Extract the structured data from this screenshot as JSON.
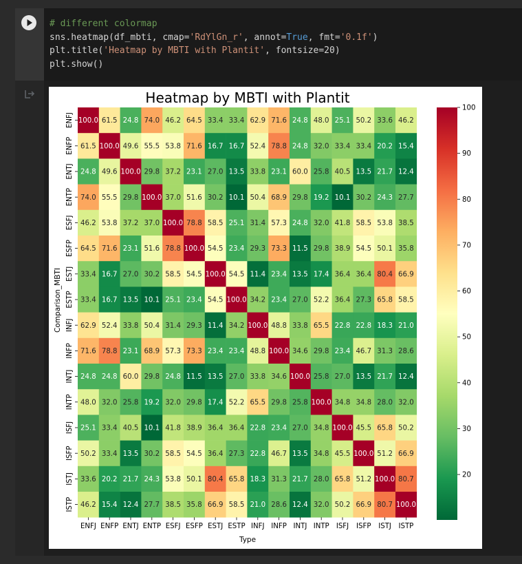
{
  "code_cell": {
    "lines": [
      "# different colormap",
      "sns.heatmap(df_mbti, cmap='RdYlGn_r', annot=True, fmt='0.1f')",
      "plt.title('Heatmap by MBTI with Plantit', fontsize=20)",
      "plt.show()"
    ],
    "run_icon": "play-icon"
  },
  "output": {
    "icon": "output-arrow-icon"
  },
  "colors": {
    "page_bg": "#2b2b2b",
    "code_bg": "#1a1a1a",
    "figure_bg": "#ffffff"
  },
  "chart_data": {
    "type": "heatmap",
    "title": "Heatmap by MBTI with Plantit",
    "xlabel": "Type",
    "ylabel": "Comparison_MBTI",
    "colormap": "RdYlGn_r",
    "value_range": [
      10.1,
      100.0
    ],
    "colorbar_ticks": [
      20,
      30,
      40,
      50,
      60,
      70,
      80,
      90,
      100
    ],
    "x_categories": [
      "ENFJ",
      "ENFP",
      "ENTJ",
      "ENTP",
      "ESFJ",
      "ESFP",
      "ESTJ",
      "ESTP",
      "INFJ",
      "INFP",
      "INTJ",
      "INTP",
      "ISFJ",
      "ISFP",
      "ISTJ",
      "ISTP"
    ],
    "y_categories": [
      "ENFJ",
      "ENFP",
      "ENTJ",
      "ENTP",
      "ESFJ",
      "ESFP",
      "ESTJ",
      "ESTP",
      "INFJ",
      "INFP",
      "INTJ",
      "INTP",
      "ISFJ",
      "ISFP",
      "ISTJ",
      "ISTP"
    ],
    "values": [
      [
        100.0,
        61.5,
        24.8,
        74.0,
        46.2,
        64.5,
        33.4,
        33.4,
        62.9,
        71.6,
        24.8,
        48.0,
        25.1,
        50.2,
        33.6,
        46.2
      ],
      [
        61.5,
        100.0,
        49.6,
        55.5,
        53.8,
        71.6,
        16.7,
        16.7,
        52.4,
        78.8,
        24.8,
        32.0,
        33.4,
        33.4,
        20.2,
        15.4
      ],
      [
        24.8,
        49.6,
        100.0,
        29.8,
        37.2,
        23.1,
        27.0,
        13.5,
        33.8,
        23.1,
        60.0,
        25.8,
        40.5,
        13.5,
        21.7,
        12.4
      ],
      [
        74.0,
        55.5,
        29.8,
        100.0,
        37.0,
        51.6,
        30.2,
        10.1,
        50.4,
        68.9,
        29.8,
        19.2,
        10.1,
        30.2,
        24.3,
        27.7
      ],
      [
        46.2,
        53.8,
        37.2,
        37.0,
        100.0,
        78.8,
        58.5,
        25.1,
        31.4,
        57.3,
        24.8,
        32.0,
        41.8,
        58.5,
        53.8,
        38.5
      ],
      [
        64.5,
        71.6,
        23.1,
        51.6,
        78.8,
        100.0,
        54.5,
        23.4,
        29.3,
        73.3,
        11.5,
        29.8,
        38.9,
        54.5,
        50.1,
        35.8
      ],
      [
        33.4,
        16.7,
        27.0,
        30.2,
        58.5,
        54.5,
        100.0,
        54.5,
        11.4,
        23.4,
        13.5,
        17.4,
        36.4,
        36.4,
        80.4,
        66.9
      ],
      [
        33.4,
        16.7,
        13.5,
        10.1,
        25.1,
        23.4,
        54.5,
        100.0,
        34.2,
        23.4,
        27.0,
        52.2,
        36.4,
        27.3,
        65.8,
        58.5
      ],
      [
        62.9,
        52.4,
        33.8,
        50.4,
        31.4,
        29.3,
        11.4,
        34.2,
        100.0,
        48.8,
        33.8,
        65.5,
        22.8,
        22.8,
        18.3,
        21.0
      ],
      [
        71.6,
        78.8,
        23.1,
        68.9,
        57.3,
        73.3,
        23.4,
        23.4,
        48.8,
        100.0,
        34.6,
        29.8,
        23.4,
        46.7,
        31.3,
        28.6
      ],
      [
        24.8,
        24.8,
        60.0,
        29.8,
        24.8,
        11.5,
        13.5,
        27.0,
        33.8,
        34.6,
        100.0,
        25.8,
        27.0,
        13.5,
        21.7,
        12.4
      ],
      [
        48.0,
        32.0,
        25.8,
        19.2,
        32.0,
        29.8,
        17.4,
        52.2,
        65.5,
        29.8,
        25.8,
        100.0,
        34.8,
        34.8,
        28.0,
        32.0
      ],
      [
        25.1,
        33.4,
        40.5,
        10.1,
        41.8,
        38.9,
        36.4,
        36.4,
        22.8,
        23.4,
        27.0,
        34.8,
        100.0,
        45.5,
        65.8,
        50.2
      ],
      [
        50.2,
        33.4,
        13.5,
        30.2,
        58.5,
        54.5,
        36.4,
        27.3,
        22.8,
        46.7,
        13.5,
        34.8,
        45.5,
        100.0,
        51.2,
        66.9
      ],
      [
        33.6,
        20.2,
        21.7,
        24.3,
        53.8,
        50.1,
        80.4,
        65.8,
        18.3,
        31.3,
        21.7,
        28.0,
        65.8,
        51.2,
        100.0,
        80.7
      ],
      [
        46.2,
        15.4,
        12.4,
        27.7,
        38.5,
        35.8,
        66.9,
        58.5,
        21.0,
        28.6,
        12.4,
        32.0,
        50.2,
        66.9,
        80.7,
        100.0
      ]
    ]
  }
}
